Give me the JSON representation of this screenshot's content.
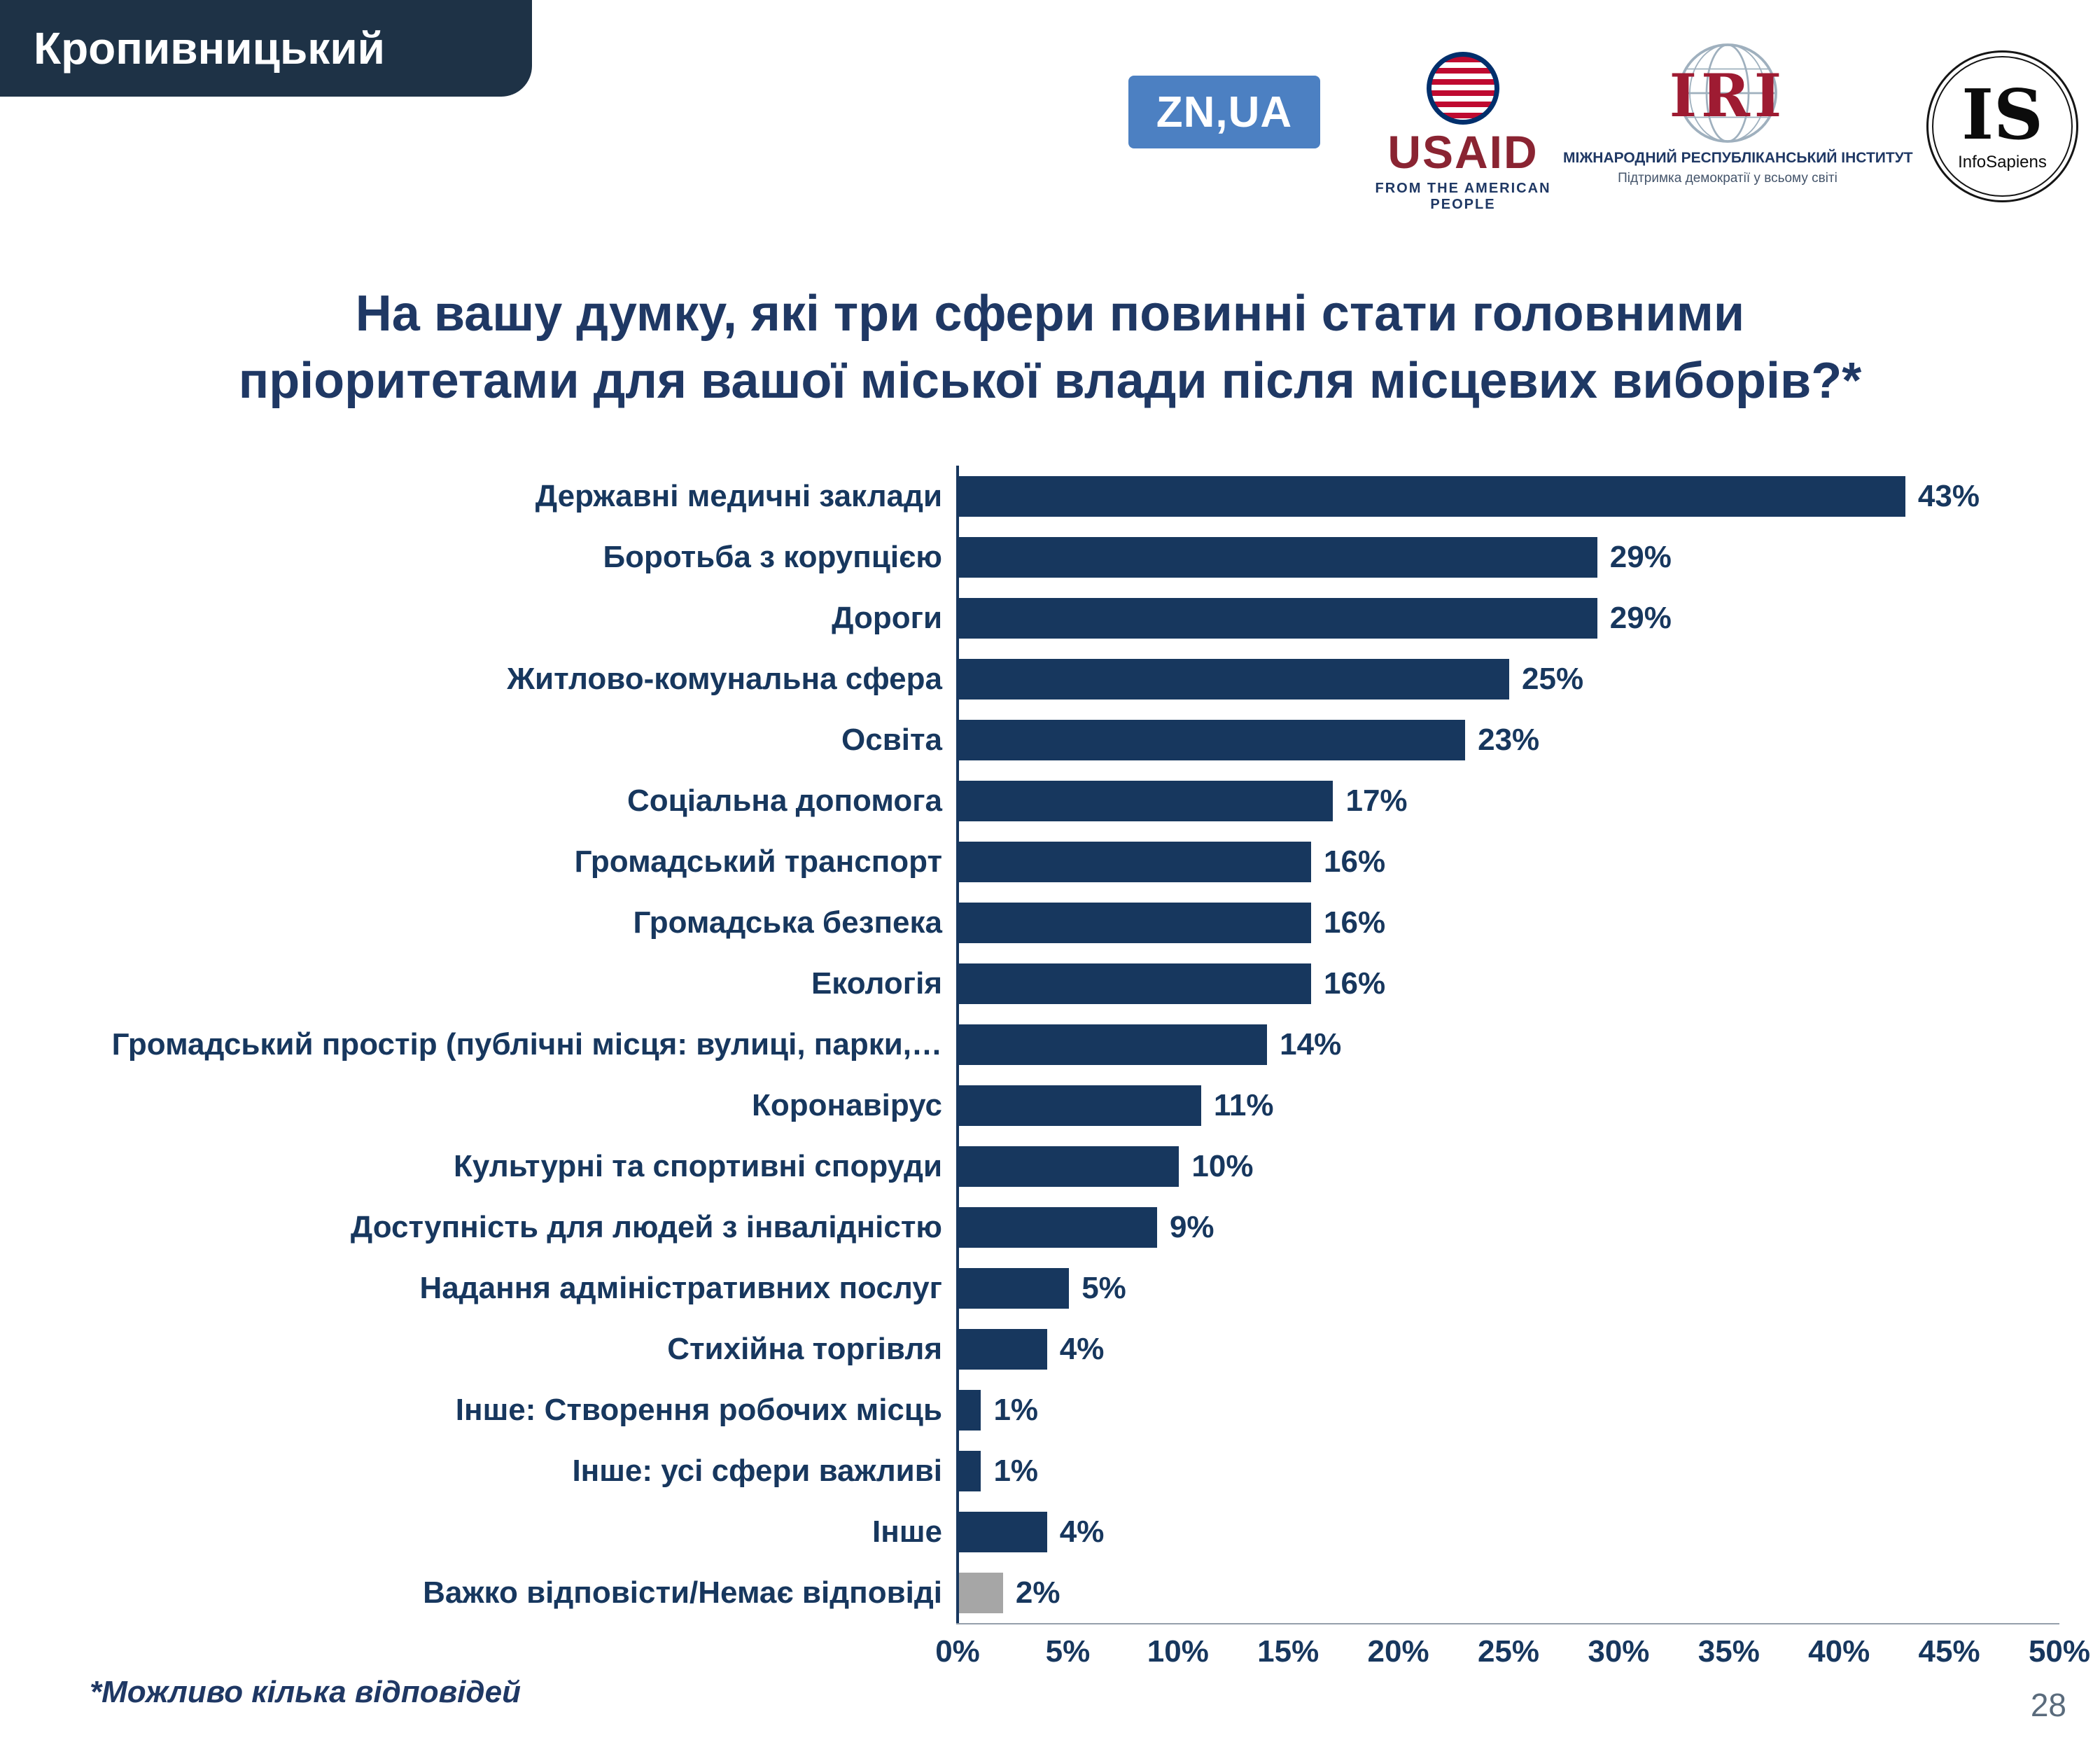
{
  "page": {
    "region_tab": "Кропивницький",
    "footnote": "*Можливо кілька відповідей",
    "page_number": "28"
  },
  "logos": {
    "znua": {
      "text": "ZN,UA"
    },
    "usaid": {
      "word": "USAID",
      "tagline": "FROM THE AMERICAN PEOPLE"
    },
    "iri": {
      "abbr": "IRI",
      "line1": "МІЖНАРОДНИЙ РЕСПУБЛІКАНСЬКИЙ ІНСТИТУТ",
      "line2": "Підтримка демократії у всьому світі"
    },
    "infosapiens": {
      "abbr": "IS",
      "name": "InfoSapiens"
    }
  },
  "chart_data": {
    "type": "bar",
    "orientation": "horizontal",
    "title": "На вашу думку, які три сфери повинні стати головними пріоритетами для вашої міської влади після місцевих виборів?*",
    "title_lines": [
      "На вашу думку, які три сфери повинні стати головними",
      "пріоритетами для вашої міської влади після місцевих виборів?*"
    ],
    "categories": [
      "Державні медичні заклади",
      "Боротьба з корупцією",
      "Дороги",
      "Житлово-комунальна сфера",
      "Освіта",
      "Соціальна допомога",
      "Громадський транспорт",
      "Громадська безпека",
      "Екологія",
      "Громадський простір (публічні місця: вулиці, парки,…",
      "Коронавірус",
      "Культурні та спортивні споруди",
      "Доступність для людей з інвалідністю",
      "Надання адміністративних послуг",
      "Стихійна торгівля",
      "Інше: Створення робочих місць",
      "Інше: усі сфери важливі",
      "Інше",
      "Важко відповісти/Немає відповіді"
    ],
    "values": [
      43,
      29,
      29,
      25,
      23,
      17,
      16,
      16,
      16,
      14,
      11,
      10,
      9,
      5,
      4,
      1,
      1,
      4,
      2
    ],
    "value_labels": [
      "43%",
      "29%",
      "29%",
      "25%",
      "23%",
      "17%",
      "16%",
      "16%",
      "16%",
      "14%",
      "11%",
      "10%",
      "9%",
      "5%",
      "4%",
      "1%",
      "1%",
      "4%",
      "2%"
    ],
    "xlim": [
      0,
      50
    ],
    "x_ticks": [
      "0%",
      "5%",
      "10%",
      "15%",
      "20%",
      "25%",
      "30%",
      "35%",
      "40%",
      "45%",
      "50%"
    ],
    "bar_color": "#17375E",
    "no_answer_color": "#A6A6A6",
    "bar_colors": [
      "#17375E",
      "#17375E",
      "#17375E",
      "#17375E",
      "#17375E",
      "#17375E",
      "#17375E",
      "#17375E",
      "#17375E",
      "#17375E",
      "#17375E",
      "#17375E",
      "#17375E",
      "#17375E",
      "#17375E",
      "#17375E",
      "#17375E",
      "#17375E",
      "#A6A6A6"
    ],
    "grid": false,
    "legend_position": "none"
  }
}
